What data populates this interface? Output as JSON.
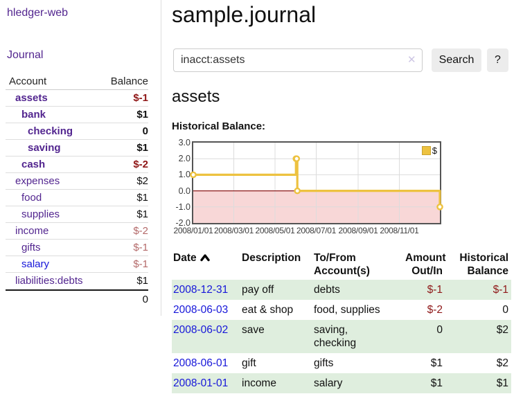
{
  "sidebar": {
    "brand": "hledger-web",
    "nav": {
      "journal": "Journal"
    },
    "accounts_table": {
      "col_account": "Account",
      "col_balance": "Balance",
      "rows": [
        {
          "name": "assets",
          "balance": "$-1"
        },
        {
          "name": "bank",
          "balance": "$1"
        },
        {
          "name": "checking",
          "balance": "0"
        },
        {
          "name": "saving",
          "balance": "$1"
        },
        {
          "name": "cash",
          "balance": "$-2"
        },
        {
          "name": "expenses",
          "balance": "$2"
        },
        {
          "name": "food",
          "balance": "$1"
        },
        {
          "name": "supplies",
          "balance": "$1"
        },
        {
          "name": "income",
          "balance": "$-2"
        },
        {
          "name": "gifts",
          "balance": "$-1"
        },
        {
          "name": "salary",
          "balance": "$-1"
        },
        {
          "name": "liabilities:debts",
          "balance": "$1"
        }
      ],
      "total": "0"
    }
  },
  "header": {
    "title": "sample.journal"
  },
  "search": {
    "value": "inacct:assets",
    "clear_icon": "✕",
    "button_label": "Search",
    "help_label": "?"
  },
  "account_page": {
    "title": "assets",
    "chart_label": "Historical Balance:"
  },
  "chart_data": {
    "type": "line",
    "step": "after",
    "title": "Historical Balance",
    "legend": [
      {
        "label": "$",
        "color": "#edc240"
      }
    ],
    "x_range": [
      "2008-01-01",
      "2008-12-31"
    ],
    "y_range": [
      -2,
      3
    ],
    "x_ticks": [
      {
        "date": "2008-01-01",
        "label": "2008/01/01"
      },
      {
        "date": "2008-03-01",
        "label": "2008/03/01"
      },
      {
        "date": "2008-05-01",
        "label": "2008/05/01"
      },
      {
        "date": "2008-07-01",
        "label": "2008/07/01"
      },
      {
        "date": "2008-09-01",
        "label": "2008/09/01"
      },
      {
        "date": "2008-11-01",
        "label": "2008/11/01"
      }
    ],
    "y_ticks": [
      {
        "value": 3,
        "label": "3.0"
      },
      {
        "value": 2,
        "label": "2.0"
      },
      {
        "value": 1,
        "label": "1.0"
      },
      {
        "value": 0,
        "label": "0.0"
      },
      {
        "value": -1,
        "label": "-1.0"
      },
      {
        "value": -2,
        "label": "-2.0"
      }
    ],
    "series": [
      {
        "name": "$",
        "color": "#edc240",
        "points": [
          {
            "x": "2008-01-01",
            "y": 1
          },
          {
            "x": "2008-06-01",
            "y": 2
          },
          {
            "x": "2008-06-02",
            "y": 2
          },
          {
            "x": "2008-06-03",
            "y": 0
          },
          {
            "x": "2008-12-31",
            "y": -1
          }
        ]
      }
    ],
    "grid": true,
    "negative_region_color": "#f6caca",
    "zero_line_color": "#8b1a1a",
    "legend_position": "top-right"
  },
  "register_table": {
    "headers": {
      "date": "Date",
      "description": "Description",
      "account": "To/From Account(s)",
      "amount": "Amount Out/In",
      "balance": "Historical Balance"
    },
    "rows": [
      {
        "date": "2008-12-31",
        "description": "pay off",
        "account": "debts",
        "amount": "$-1",
        "balance": "$-1"
      },
      {
        "date": "2008-06-03",
        "description": "eat & shop",
        "account": "food, supplies",
        "amount": "$-2",
        "balance": "0"
      },
      {
        "date": "2008-06-02",
        "description": "save",
        "account": "saving,\nchecking",
        "amount": "0",
        "balance": "$2"
      },
      {
        "date": "2008-06-01",
        "description": "gift",
        "account": "gifts",
        "amount": "$1",
        "balance": "$2"
      },
      {
        "date": "2008-01-01",
        "description": "income",
        "account": "salary",
        "amount": "$1",
        "balance": "$1"
      }
    ]
  }
}
